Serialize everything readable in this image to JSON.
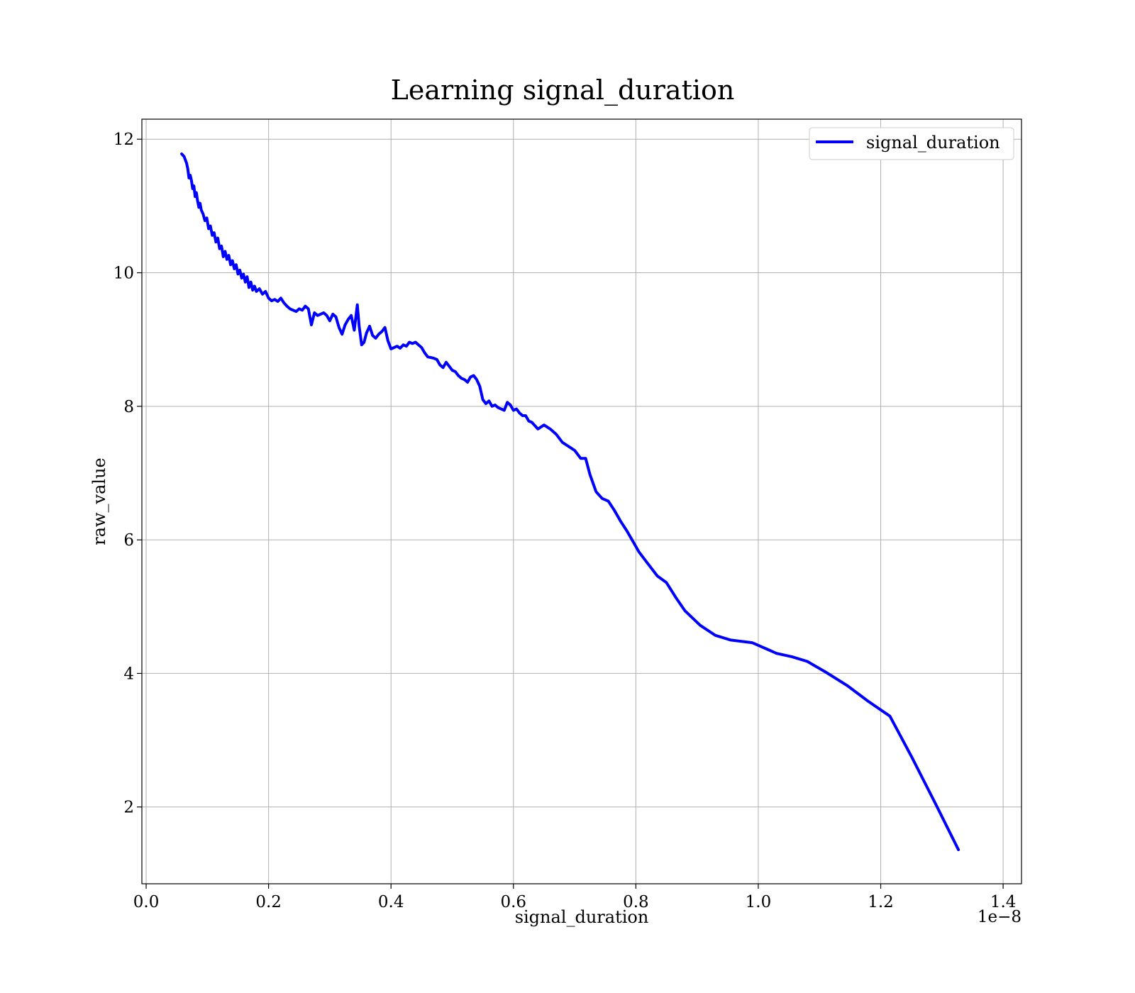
{
  "chart_data": {
    "type": "line",
    "title": "Learning signal_duration",
    "xlabel": "signal_duration",
    "ylabel": "raw_value",
    "x_offset_label": "1e−8",
    "x_scale": 1e-08,
    "xlim": [
      -0.007,
      1.43
    ],
    "ylim": [
      0.85,
      12.3
    ],
    "x_ticks": [
      0.0,
      0.2,
      0.4,
      0.6,
      0.8,
      1.0,
      1.2,
      1.4
    ],
    "x_tick_labels": [
      "0.0",
      "0.2",
      "0.4",
      "0.6",
      "0.8",
      "1.0",
      "1.2",
      "1.4"
    ],
    "y_ticks": [
      2,
      4,
      6,
      8,
      10,
      12
    ],
    "y_tick_labels": [
      "2",
      "4",
      "6",
      "8",
      "10",
      "12"
    ],
    "grid": true,
    "legend": {
      "position": "upper right",
      "entries": [
        "signal_duration"
      ]
    },
    "series": [
      {
        "name": "signal_duration",
        "color": "#0000ff",
        "points": [
          [
            0.058,
            11.78
          ],
          [
            0.062,
            11.74
          ],
          [
            0.066,
            11.64
          ],
          [
            0.068,
            11.56
          ],
          [
            0.07,
            11.42
          ],
          [
            0.072,
            11.46
          ],
          [
            0.074,
            11.38
          ],
          [
            0.076,
            11.26
          ],
          [
            0.078,
            11.3
          ],
          [
            0.08,
            11.14
          ],
          [
            0.082,
            11.2
          ],
          [
            0.084,
            11.08
          ],
          [
            0.086,
            10.98
          ],
          [
            0.088,
            11.04
          ],
          [
            0.09,
            10.94
          ],
          [
            0.093,
            10.88
          ],
          [
            0.096,
            10.78
          ],
          [
            0.099,
            10.82
          ],
          [
            0.102,
            10.66
          ],
          [
            0.105,
            10.7
          ],
          [
            0.108,
            10.56
          ],
          [
            0.111,
            10.6
          ],
          [
            0.114,
            10.46
          ],
          [
            0.117,
            10.52
          ],
          [
            0.12,
            10.36
          ],
          [
            0.123,
            10.4
          ],
          [
            0.126,
            10.24
          ],
          [
            0.129,
            10.32
          ],
          [
            0.132,
            10.2
          ],
          [
            0.135,
            10.26
          ],
          [
            0.138,
            10.12
          ],
          [
            0.141,
            10.18
          ],
          [
            0.144,
            10.06
          ],
          [
            0.147,
            10.12
          ],
          [
            0.15,
            9.98
          ],
          [
            0.153,
            10.04
          ],
          [
            0.156,
            9.92
          ],
          [
            0.159,
            9.98
          ],
          [
            0.162,
            9.86
          ],
          [
            0.165,
            9.94
          ],
          [
            0.168,
            9.78
          ],
          [
            0.171,
            9.86
          ],
          [
            0.174,
            9.74
          ],
          [
            0.177,
            9.8
          ],
          [
            0.18,
            9.72
          ],
          [
            0.185,
            9.76
          ],
          [
            0.19,
            9.68
          ],
          [
            0.195,
            9.72
          ],
          [
            0.2,
            9.62
          ],
          [
            0.205,
            9.58
          ],
          [
            0.21,
            9.6
          ],
          [
            0.215,
            9.57
          ],
          [
            0.22,
            9.62
          ],
          [
            0.225,
            9.55
          ],
          [
            0.23,
            9.5
          ],
          [
            0.235,
            9.46
          ],
          [
            0.24,
            9.44
          ],
          [
            0.245,
            9.42
          ],
          [
            0.25,
            9.46
          ],
          [
            0.255,
            9.44
          ],
          [
            0.26,
            9.5
          ],
          [
            0.265,
            9.46
          ],
          [
            0.27,
            9.22
          ],
          [
            0.275,
            9.4
          ],
          [
            0.28,
            9.36
          ],
          [
            0.285,
            9.38
          ],
          [
            0.29,
            9.4
          ],
          [
            0.295,
            9.36
          ],
          [
            0.3,
            9.28
          ],
          [
            0.305,
            9.38
          ],
          [
            0.31,
            9.34
          ],
          [
            0.315,
            9.18
          ],
          [
            0.32,
            9.08
          ],
          [
            0.325,
            9.22
          ],
          [
            0.33,
            9.3
          ],
          [
            0.335,
            9.36
          ],
          [
            0.34,
            9.14
          ],
          [
            0.345,
            9.52
          ],
          [
            0.348,
            9.2
          ],
          [
            0.352,
            8.92
          ],
          [
            0.356,
            8.96
          ],
          [
            0.36,
            9.1
          ],
          [
            0.365,
            9.2
          ],
          [
            0.37,
            9.06
          ],
          [
            0.375,
            9.02
          ],
          [
            0.38,
            9.08
          ],
          [
            0.385,
            9.12
          ],
          [
            0.39,
            9.18
          ],
          [
            0.395,
            8.98
          ],
          [
            0.4,
            8.86
          ],
          [
            0.405,
            8.88
          ],
          [
            0.41,
            8.9
          ],
          [
            0.415,
            8.87
          ],
          [
            0.42,
            8.92
          ],
          [
            0.425,
            8.9
          ],
          [
            0.43,
            8.96
          ],
          [
            0.435,
            8.94
          ],
          [
            0.44,
            8.96
          ],
          [
            0.45,
            8.88
          ],
          [
            0.455,
            8.8
          ],
          [
            0.46,
            8.74
          ],
          [
            0.465,
            8.73
          ],
          [
            0.47,
            8.72
          ],
          [
            0.475,
            8.7
          ],
          [
            0.48,
            8.62
          ],
          [
            0.485,
            8.58
          ],
          [
            0.49,
            8.66
          ],
          [
            0.495,
            8.6
          ],
          [
            0.5,
            8.54
          ],
          [
            0.505,
            8.52
          ],
          [
            0.51,
            8.46
          ],
          [
            0.515,
            8.42
          ],
          [
            0.52,
            8.4
          ],
          [
            0.525,
            8.36
          ],
          [
            0.53,
            8.44
          ],
          [
            0.535,
            8.46
          ],
          [
            0.54,
            8.4
          ],
          [
            0.545,
            8.3
          ],
          [
            0.55,
            8.1
          ],
          [
            0.555,
            8.04
          ],
          [
            0.56,
            8.08
          ],
          [
            0.565,
            8.0
          ],
          [
            0.57,
            8.02
          ],
          [
            0.575,
            7.98
          ],
          [
            0.58,
            7.96
          ],
          [
            0.585,
            7.94
          ],
          [
            0.59,
            8.06
          ],
          [
            0.595,
            8.02
          ],
          [
            0.6,
            7.94
          ],
          [
            0.605,
            7.96
          ],
          [
            0.61,
            7.9
          ],
          [
            0.615,
            7.86
          ],
          [
            0.62,
            7.86
          ],
          [
            0.625,
            7.78
          ],
          [
            0.63,
            7.76
          ],
          [
            0.64,
            7.66
          ],
          [
            0.65,
            7.72
          ],
          [
            0.66,
            7.66
          ],
          [
            0.67,
            7.58
          ],
          [
            0.68,
            7.46
          ],
          [
            0.69,
            7.4
          ],
          [
            0.7,
            7.34
          ],
          [
            0.71,
            7.22
          ],
          [
            0.718,
            7.22
          ],
          [
            0.725,
            6.98
          ],
          [
            0.735,
            6.72
          ],
          [
            0.745,
            6.62
          ],
          [
            0.755,
            6.58
          ],
          [
            0.765,
            6.44
          ],
          [
            0.775,
            6.28
          ],
          [
            0.785,
            6.14
          ],
          [
            0.795,
            5.98
          ],
          [
            0.805,
            5.82
          ],
          [
            0.815,
            5.7
          ],
          [
            0.825,
            5.58
          ],
          [
            0.835,
            5.46
          ],
          [
            0.85,
            5.36
          ],
          [
            0.865,
            5.14
          ],
          [
            0.88,
            4.94
          ],
          [
            0.905,
            4.72
          ],
          [
            0.93,
            4.57
          ],
          [
            0.955,
            4.5
          ],
          [
            0.99,
            4.46
          ],
          [
            1.015,
            4.36
          ],
          [
            1.03,
            4.3
          ],
          [
            1.055,
            4.25
          ],
          [
            1.08,
            4.18
          ],
          [
            1.11,
            4.02
          ],
          [
            1.145,
            3.82
          ],
          [
            1.18,
            3.58
          ],
          [
            1.215,
            3.36
          ],
          [
            1.25,
            2.76
          ],
          [
            1.29,
            2.04
          ],
          [
            1.327,
            1.36
          ]
        ]
      }
    ]
  }
}
